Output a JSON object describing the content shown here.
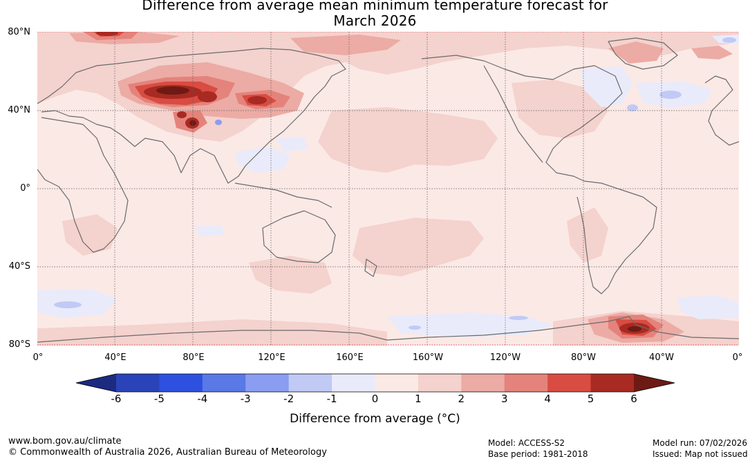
{
  "title_line1": "Difference from average mean minimum temperature forecast for",
  "title_line2": "March 2026",
  "lat_labels": [
    "80°N",
    "40°N",
    "0°",
    "40°S",
    "80°S"
  ],
  "lon_labels": [
    "0°",
    "40°E",
    "80°E",
    "120°E",
    "160°E",
    "160°W",
    "120°W",
    "80°W",
    "40°W",
    "0°"
  ],
  "colorbar": {
    "ticks": [
      "-6",
      "-5",
      "-4",
      "-3",
      "-2",
      "-1",
      "0",
      "1",
      "2",
      "3",
      "4",
      "5",
      "6"
    ],
    "colors": [
      "#1c2a80",
      "#2a43b8",
      "#2e50e0",
      "#5a78e6",
      "#8a9df0",
      "#c1c9f5",
      "#e9ebfb",
      "#fbe9e6",
      "#f4d2cd",
      "#ecaba4",
      "#e4837b",
      "#d84c42",
      "#a82a22",
      "#6e1a14"
    ],
    "label": "Difference from average (°C)"
  },
  "footer": {
    "url": "www.bom.gov.au/climate",
    "copyright": "© Commonwealth of Australia 2026, Australian Bureau of Meteorology",
    "model": "Model: ACCESS-S2",
    "base_period": "Base period: 1981-2018",
    "model_run": "Model run: 07/02/2026",
    "issued": "Issued: Map not issued"
  }
}
